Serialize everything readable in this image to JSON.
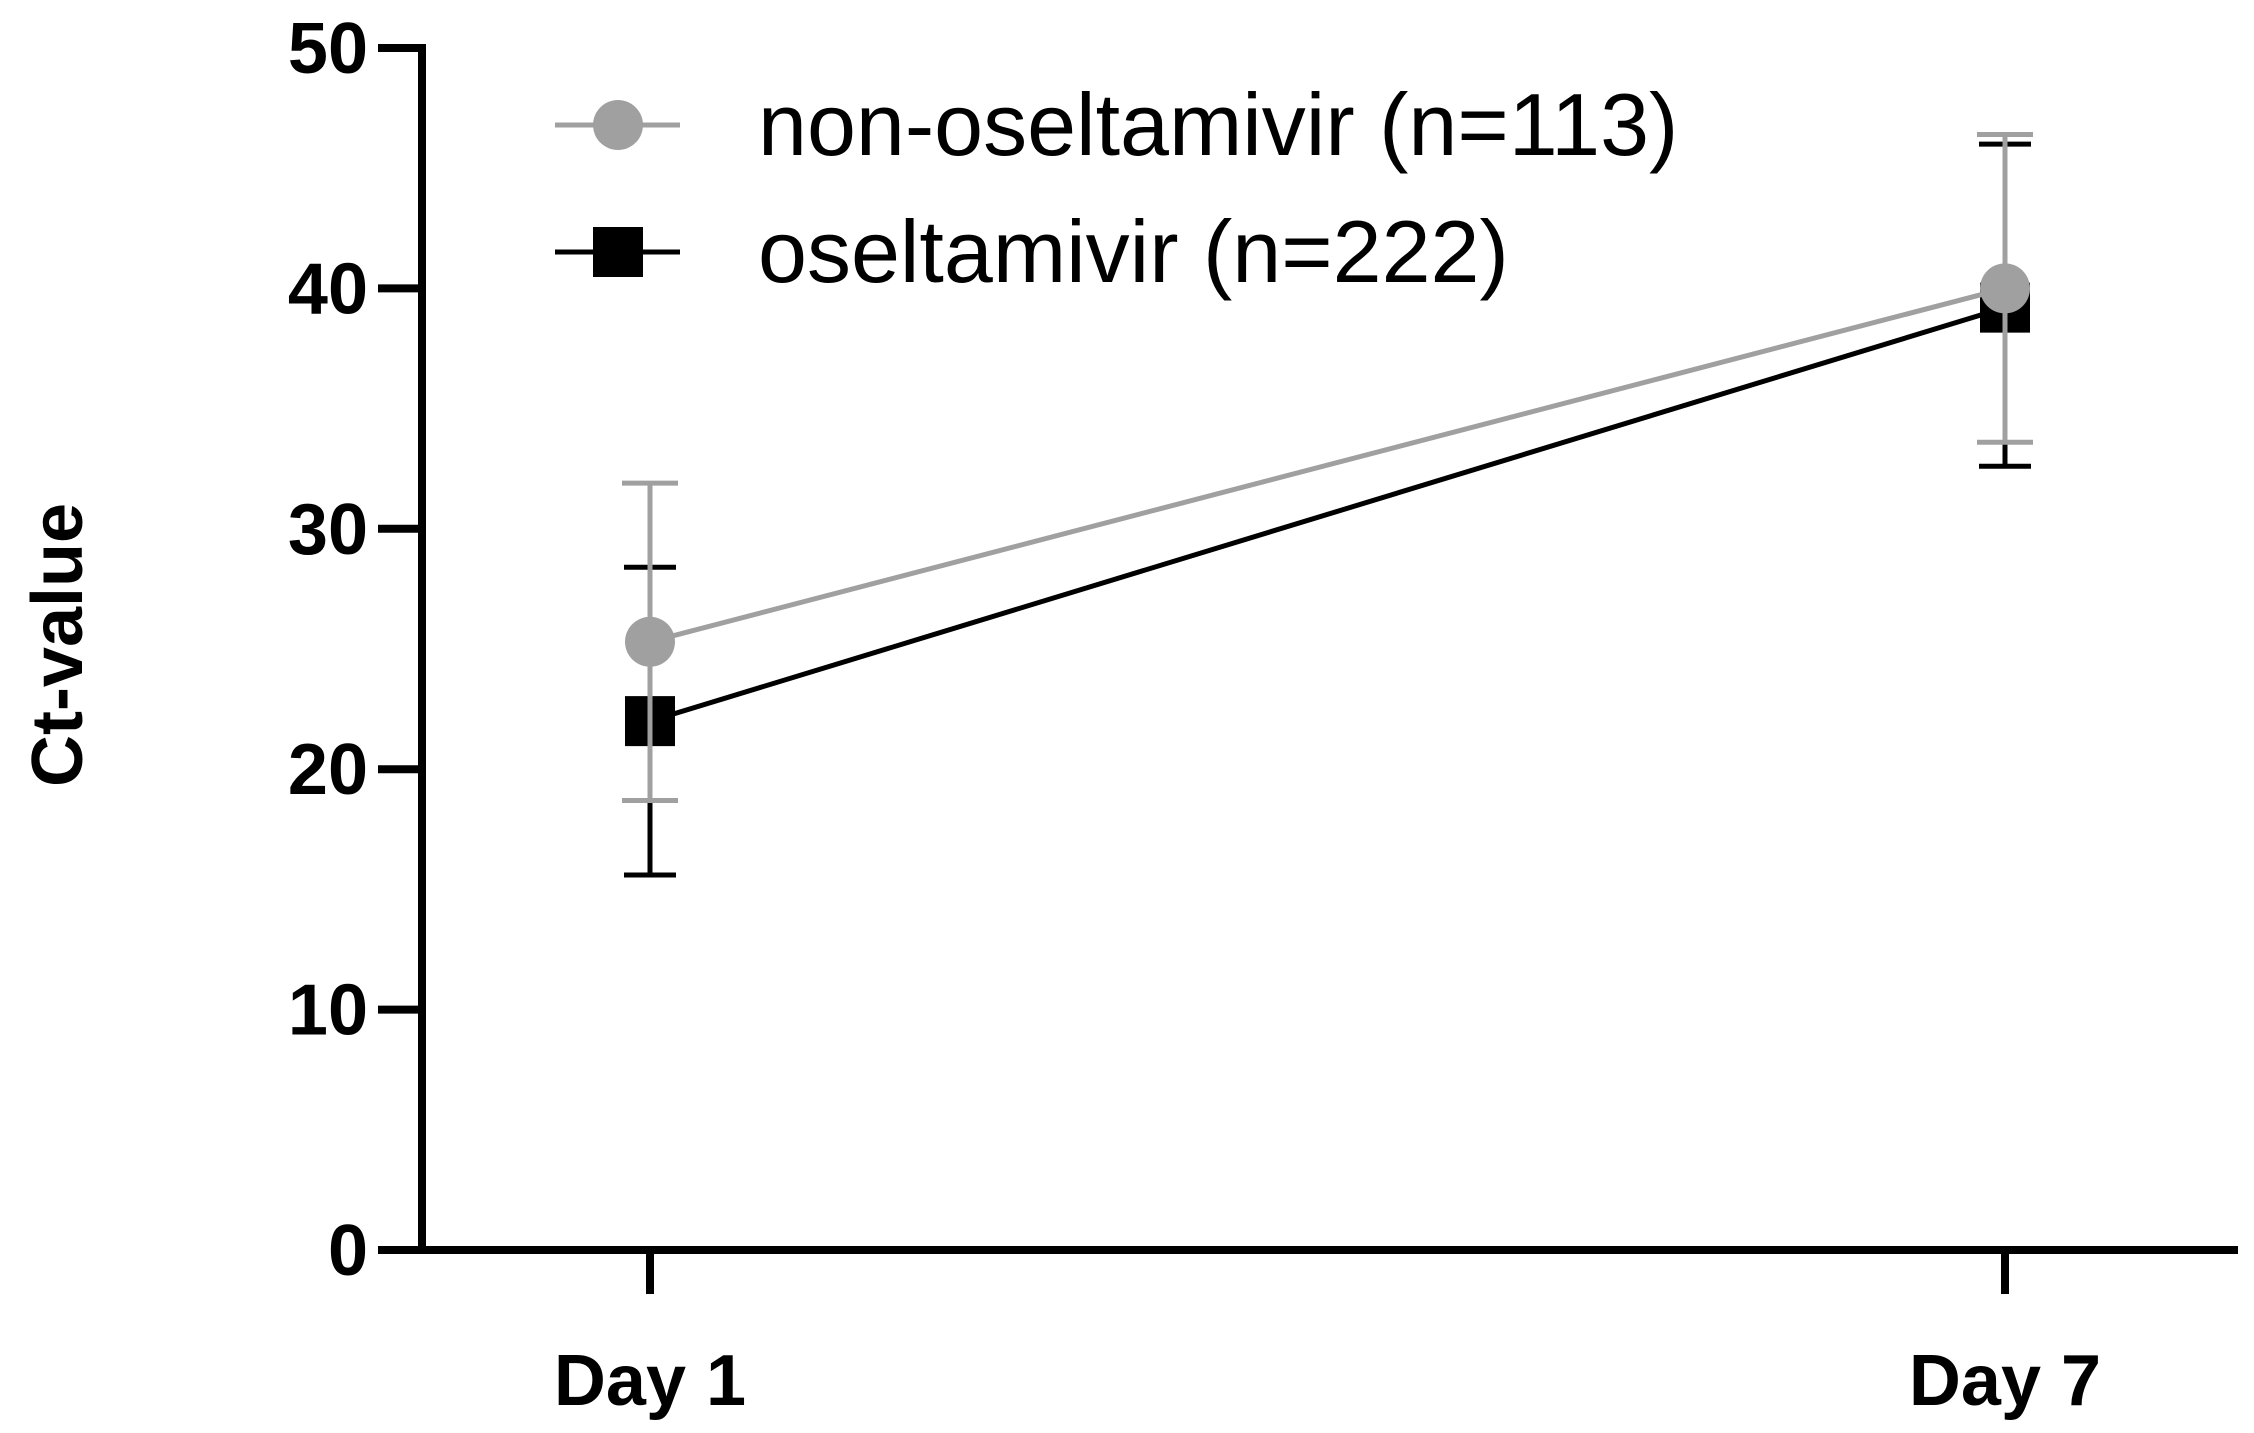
{
  "chart_data": {
    "type": "line",
    "title": "",
    "xlabel": "",
    "ylabel": "Ct-value",
    "categories": [
      "Day 1",
      "Day 7"
    ],
    "ylim": [
      0,
      50
    ],
    "yticks": [
      "0",
      "10",
      "20",
      "30",
      "40",
      "50"
    ],
    "grid": false,
    "legend_position": "top-left",
    "series": [
      {
        "name": "non-oseltamivir (n=113)",
        "color": "#a0a0a0",
        "marker": "circle",
        "values": [
          25.3,
          40.0
        ],
        "error_high": [
          31.9,
          46.4
        ],
        "error_low": [
          18.7,
          33.6
        ]
      },
      {
        "name": "oseltamivir (n=222)",
        "color": "#000000",
        "marker": "square",
        "values": [
          22.0,
          39.2
        ],
        "error_high": [
          28.4,
          46.0
        ],
        "error_low": [
          15.6,
          32.6
        ]
      }
    ]
  }
}
